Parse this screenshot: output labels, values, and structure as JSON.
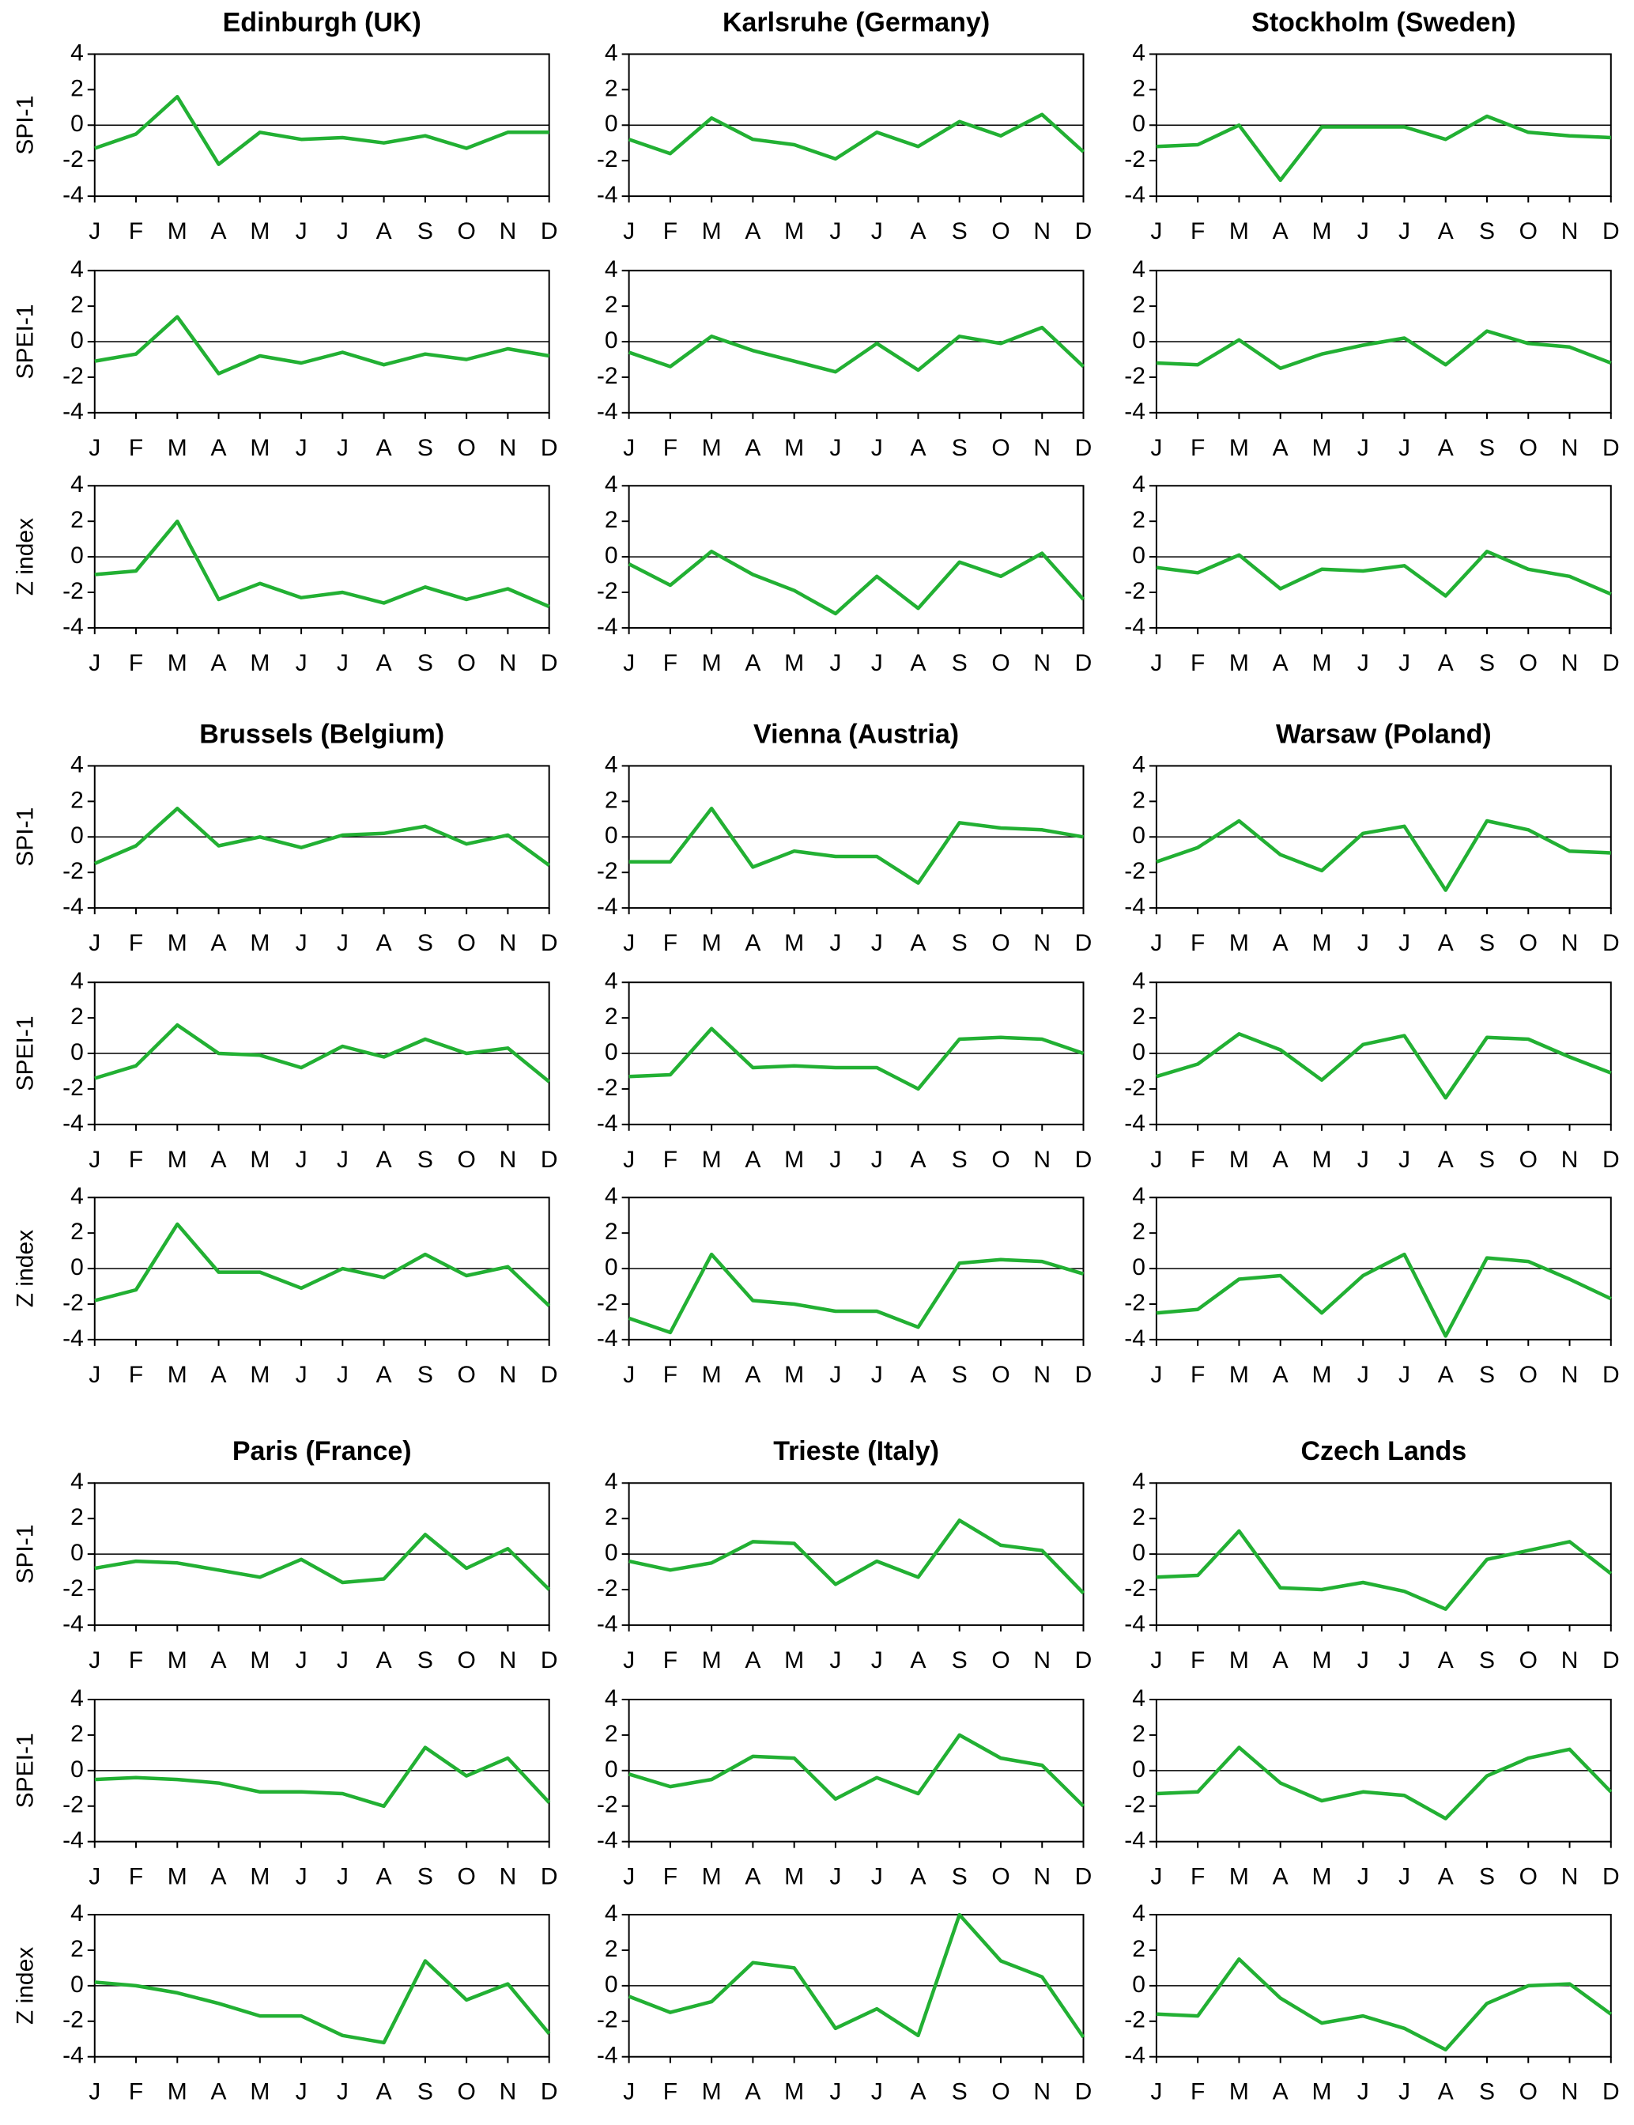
{
  "chart_data": [
    {
      "type": "line",
      "title": "Edinburgh (UK)",
      "ylabel": "SPI-1",
      "categories": [
        "J",
        "F",
        "M",
        "A",
        "M",
        "J",
        "J",
        "A",
        "S",
        "O",
        "N",
        "D"
      ],
      "series": [
        {
          "color": "#22b033",
          "values": [
            -1.3,
            -0.5,
            1.6,
            -2.2,
            -0.4,
            -0.8,
            -0.7,
            -1.0,
            -0.6,
            -1.3,
            -0.4,
            -0.4
          ]
        }
      ],
      "ylim": [
        -4,
        4
      ],
      "yticks": [
        -4,
        -2,
        0,
        2,
        4
      ],
      "zero_line": true
    },
    {
      "type": "line",
      "title": "Karlsruhe (Germany)",
      "categories": [
        "J",
        "F",
        "M",
        "A",
        "M",
        "J",
        "J",
        "A",
        "S",
        "O",
        "N",
        "D"
      ],
      "series": [
        {
          "color": "#22b033",
          "values": [
            -0.8,
            -1.6,
            0.4,
            -0.8,
            -1.1,
            -1.9,
            -0.4,
            -1.2,
            0.2,
            -0.6,
            0.6,
            -1.5
          ]
        }
      ],
      "ylim": [
        -4,
        4
      ],
      "yticks": [
        -4,
        -2,
        0,
        2,
        4
      ],
      "zero_line": true
    },
    {
      "type": "line",
      "title": "Stockholm (Sweden)",
      "categories": [
        "J",
        "F",
        "M",
        "A",
        "M",
        "J",
        "J",
        "A",
        "S",
        "O",
        "N",
        "D"
      ],
      "series": [
        {
          "color": "#22b033",
          "values": [
            -1.2,
            -1.1,
            0.0,
            -3.1,
            -0.1,
            -0.1,
            -0.1,
            -0.8,
            0.5,
            -0.4,
            -0.6,
            -0.7
          ]
        }
      ],
      "ylim": [
        -4,
        4
      ],
      "yticks": [
        -4,
        -2,
        0,
        2,
        4
      ],
      "zero_line": true
    },
    {
      "type": "line",
      "ylabel": "SPEI-1",
      "categories": [
        "J",
        "F",
        "M",
        "A",
        "M",
        "J",
        "J",
        "A",
        "S",
        "O",
        "N",
        "D"
      ],
      "series": [
        {
          "color": "#22b033",
          "values": [
            -1.1,
            -0.7,
            1.4,
            -1.8,
            -0.8,
            -1.2,
            -0.6,
            -1.3,
            -0.7,
            -1.0,
            -0.4,
            -0.8
          ]
        }
      ],
      "ylim": [
        -4,
        4
      ],
      "yticks": [
        -4,
        -2,
        0,
        2,
        4
      ],
      "zero_line": true
    },
    {
      "type": "line",
      "categories": [
        "J",
        "F",
        "M",
        "A",
        "M",
        "J",
        "J",
        "A",
        "S",
        "O",
        "N",
        "D"
      ],
      "series": [
        {
          "color": "#22b033",
          "values": [
            -0.6,
            -1.4,
            0.3,
            -0.5,
            -1.1,
            -1.7,
            -0.1,
            -1.6,
            0.3,
            -0.1,
            0.8,
            -1.4
          ]
        }
      ],
      "ylim": [
        -4,
        4
      ],
      "yticks": [
        -4,
        -2,
        0,
        2,
        4
      ],
      "zero_line": true
    },
    {
      "type": "line",
      "categories": [
        "J",
        "F",
        "M",
        "A",
        "M",
        "J",
        "J",
        "A",
        "S",
        "O",
        "N",
        "D"
      ],
      "series": [
        {
          "color": "#22b033",
          "values": [
            -1.2,
            -1.3,
            0.1,
            -1.5,
            -0.7,
            -0.2,
            0.2,
            -1.3,
            0.6,
            -0.1,
            -0.3,
            -1.2
          ]
        }
      ],
      "ylim": [
        -4,
        4
      ],
      "yticks": [
        -4,
        -2,
        0,
        2,
        4
      ],
      "zero_line": true
    },
    {
      "type": "line",
      "ylabel": "Z index",
      "categories": [
        "J",
        "F",
        "M",
        "A",
        "M",
        "J",
        "J",
        "A",
        "S",
        "O",
        "N",
        "D"
      ],
      "series": [
        {
          "color": "#22b033",
          "values": [
            -1.0,
            -0.8,
            2.0,
            -2.4,
            -1.5,
            -2.3,
            -2.0,
            -2.6,
            -1.7,
            -2.4,
            -1.8,
            -2.8
          ]
        }
      ],
      "ylim": [
        -4,
        4
      ],
      "yticks": [
        -4,
        -2,
        0,
        2,
        4
      ],
      "zero_line": true
    },
    {
      "type": "line",
      "categories": [
        "J",
        "F",
        "M",
        "A",
        "M",
        "J",
        "J",
        "A",
        "S",
        "O",
        "N",
        "D"
      ],
      "series": [
        {
          "color": "#22b033",
          "values": [
            -0.4,
            -1.6,
            0.3,
            -1.0,
            -1.9,
            -3.2,
            -1.1,
            -2.9,
            -0.3,
            -1.1,
            0.2,
            -2.4
          ]
        }
      ],
      "ylim": [
        -4,
        4
      ],
      "yticks": [
        -4,
        -2,
        0,
        2,
        4
      ],
      "zero_line": true
    },
    {
      "type": "line",
      "categories": [
        "J",
        "F",
        "M",
        "A",
        "M",
        "J",
        "J",
        "A",
        "S",
        "O",
        "N",
        "D"
      ],
      "series": [
        {
          "color": "#22b033",
          "values": [
            -0.6,
            -0.9,
            0.1,
            -1.8,
            -0.7,
            -0.8,
            -0.5,
            -2.2,
            0.3,
            -0.7,
            -1.1,
            -2.1
          ]
        }
      ],
      "ylim": [
        -4,
        4
      ],
      "yticks": [
        -4,
        -2,
        0,
        2,
        4
      ],
      "zero_line": true
    },
    {
      "type": "line",
      "title": "Brussels (Belgium)",
      "ylabel": "SPI-1",
      "categories": [
        "J",
        "F",
        "M",
        "A",
        "M",
        "J",
        "J",
        "A",
        "S",
        "O",
        "N",
        "D"
      ],
      "series": [
        {
          "color": "#22b033",
          "values": [
            -1.5,
            -0.5,
            1.6,
            -0.5,
            0.0,
            -0.6,
            0.1,
            0.2,
            0.6,
            -0.4,
            0.1,
            -1.6
          ]
        }
      ],
      "ylim": [
        -4,
        4
      ],
      "yticks": [
        -4,
        -2,
        0,
        2,
        4
      ],
      "zero_line": true
    },
    {
      "type": "line",
      "title": "Vienna (Austria)",
      "categories": [
        "J",
        "F",
        "M",
        "A",
        "M",
        "J",
        "J",
        "A",
        "S",
        "O",
        "N",
        "D"
      ],
      "series": [
        {
          "color": "#22b033",
          "values": [
            -1.4,
            -1.4,
            1.6,
            -1.7,
            -0.8,
            -1.1,
            -1.1,
            -2.6,
            0.8,
            0.5,
            0.4,
            0.0
          ]
        }
      ],
      "ylim": [
        -4,
        4
      ],
      "yticks": [
        -4,
        -2,
        0,
        2,
        4
      ],
      "zero_line": true
    },
    {
      "type": "line",
      "title": "Warsaw (Poland)",
      "categories": [
        "J",
        "F",
        "M",
        "A",
        "M",
        "J",
        "J",
        "A",
        "S",
        "O",
        "N",
        "D"
      ],
      "series": [
        {
          "color": "#22b033",
          "values": [
            -1.4,
            -0.6,
            0.9,
            -1.0,
            -1.9,
            0.2,
            0.6,
            -3.0,
            0.9,
            0.4,
            -0.8,
            -0.9
          ]
        }
      ],
      "ylim": [
        -4,
        4
      ],
      "yticks": [
        -4,
        -2,
        0,
        2,
        4
      ],
      "zero_line": true
    },
    {
      "type": "line",
      "ylabel": "SPEI-1",
      "categories": [
        "J",
        "F",
        "M",
        "A",
        "M",
        "J",
        "J",
        "A",
        "S",
        "O",
        "N",
        "D"
      ],
      "series": [
        {
          "color": "#22b033",
          "values": [
            -1.4,
            -0.7,
            1.6,
            0.0,
            -0.1,
            -0.8,
            0.4,
            -0.2,
            0.8,
            0.0,
            0.3,
            -1.6
          ]
        }
      ],
      "ylim": [
        -4,
        4
      ],
      "yticks": [
        -4,
        -2,
        0,
        2,
        4
      ],
      "zero_line": true
    },
    {
      "type": "line",
      "categories": [
        "J",
        "F",
        "M",
        "A",
        "M",
        "J",
        "J",
        "A",
        "S",
        "O",
        "N",
        "D"
      ],
      "series": [
        {
          "color": "#22b033",
          "values": [
            -1.3,
            -1.2,
            1.4,
            -0.8,
            -0.7,
            -0.8,
            -0.8,
            -2.0,
            0.8,
            0.9,
            0.8,
            0.0
          ]
        }
      ],
      "ylim": [
        -4,
        4
      ],
      "yticks": [
        -4,
        -2,
        0,
        2,
        4
      ],
      "zero_line": true
    },
    {
      "type": "line",
      "categories": [
        "J",
        "F",
        "M",
        "A",
        "M",
        "J",
        "J",
        "A",
        "S",
        "O",
        "N",
        "D"
      ],
      "series": [
        {
          "color": "#22b033",
          "values": [
            -1.3,
            -0.6,
            1.1,
            0.2,
            -1.5,
            0.5,
            1.0,
            -2.5,
            0.9,
            0.8,
            -0.2,
            -1.1
          ]
        }
      ],
      "ylim": [
        -4,
        4
      ],
      "yticks": [
        -4,
        -2,
        0,
        2,
        4
      ],
      "zero_line": true
    },
    {
      "type": "line",
      "ylabel": "Z index",
      "categories": [
        "J",
        "F",
        "M",
        "A",
        "M",
        "J",
        "J",
        "A",
        "S",
        "O",
        "N",
        "D"
      ],
      "series": [
        {
          "color": "#22b033",
          "values": [
            -1.8,
            -1.2,
            2.5,
            -0.2,
            -0.2,
            -1.1,
            0.0,
            -0.5,
            0.8,
            -0.4,
            0.1,
            -2.1
          ]
        }
      ],
      "ylim": [
        -4,
        4
      ],
      "yticks": [
        -4,
        -2,
        0,
        2,
        4
      ],
      "zero_line": true
    },
    {
      "type": "line",
      "categories": [
        "J",
        "F",
        "M",
        "A",
        "M",
        "J",
        "J",
        "A",
        "S",
        "O",
        "N",
        "D"
      ],
      "series": [
        {
          "color": "#22b033",
          "values": [
            -2.8,
            -3.6,
            0.8,
            -1.8,
            -2.0,
            -2.4,
            -2.4,
            -3.3,
            0.3,
            0.5,
            0.4,
            -0.3
          ]
        }
      ],
      "ylim": [
        -4,
        4
      ],
      "yticks": [
        -4,
        -2,
        0,
        2,
        4
      ],
      "zero_line": true
    },
    {
      "type": "line",
      "categories": [
        "J",
        "F",
        "M",
        "A",
        "M",
        "J",
        "J",
        "A",
        "S",
        "O",
        "N",
        "D"
      ],
      "series": [
        {
          "color": "#22b033",
          "values": [
            -2.5,
            -2.3,
            -0.6,
            -0.4,
            -2.5,
            -0.4,
            0.8,
            -3.8,
            0.6,
            0.4,
            -0.6,
            -1.7
          ]
        }
      ],
      "ylim": [
        -4,
        4
      ],
      "yticks": [
        -4,
        -2,
        0,
        2,
        4
      ],
      "zero_line": true
    },
    {
      "type": "line",
      "title": "Paris (France)",
      "ylabel": "SPI-1",
      "categories": [
        "J",
        "F",
        "M",
        "A",
        "M",
        "J",
        "J",
        "A",
        "S",
        "O",
        "N",
        "D"
      ],
      "series": [
        {
          "color": "#22b033",
          "values": [
            -0.8,
            -0.4,
            -0.5,
            -0.9,
            -1.3,
            -0.3,
            -1.6,
            -1.4,
            1.1,
            -0.8,
            0.3,
            -2.0
          ]
        }
      ],
      "ylim": [
        -4,
        4
      ],
      "yticks": [
        -4,
        -2,
        0,
        2,
        4
      ],
      "zero_line": true
    },
    {
      "type": "line",
      "title": "Trieste (Italy)",
      "categories": [
        "J",
        "F",
        "M",
        "A",
        "M",
        "J",
        "J",
        "A",
        "S",
        "O",
        "N",
        "D"
      ],
      "series": [
        {
          "color": "#22b033",
          "values": [
            -0.4,
            -0.9,
            -0.5,
            0.7,
            0.6,
            -1.7,
            -0.4,
            -1.3,
            1.9,
            0.5,
            0.2,
            -2.2
          ]
        }
      ],
      "ylim": [
        -4,
        4
      ],
      "yticks": [
        -4,
        -2,
        0,
        2,
        4
      ],
      "zero_line": true
    },
    {
      "type": "line",
      "title": "Czech Lands",
      "categories": [
        "J",
        "F",
        "M",
        "A",
        "M",
        "J",
        "J",
        "A",
        "S",
        "O",
        "N",
        "D"
      ],
      "series": [
        {
          "color": "#22b033",
          "values": [
            -1.3,
            -1.2,
            1.3,
            -1.9,
            -2.0,
            -1.6,
            -2.1,
            -3.1,
            -0.3,
            0.2,
            0.7,
            -1.1
          ]
        }
      ],
      "ylim": [
        -4,
        4
      ],
      "yticks": [
        -4,
        -2,
        0,
        2,
        4
      ],
      "zero_line": true
    },
    {
      "type": "line",
      "ylabel": "SPEI-1",
      "categories": [
        "J",
        "F",
        "M",
        "A",
        "M",
        "J",
        "J",
        "A",
        "S",
        "O",
        "N",
        "D"
      ],
      "series": [
        {
          "color": "#22b033",
          "values": [
            -0.5,
            -0.4,
            -0.5,
            -0.7,
            -1.2,
            -1.2,
            -1.3,
            -2.0,
            1.3,
            -0.3,
            0.7,
            -1.8
          ]
        }
      ],
      "ylim": [
        -4,
        4
      ],
      "yticks": [
        -4,
        -2,
        0,
        2,
        4
      ],
      "zero_line": true
    },
    {
      "type": "line",
      "categories": [
        "J",
        "F",
        "M",
        "A",
        "M",
        "J",
        "J",
        "A",
        "S",
        "O",
        "N",
        "D"
      ],
      "series": [
        {
          "color": "#22b033",
          "values": [
            -0.2,
            -0.9,
            -0.5,
            0.8,
            0.7,
            -1.6,
            -0.4,
            -1.3,
            2.0,
            0.7,
            0.3,
            -2.0
          ]
        }
      ],
      "ylim": [
        -4,
        4
      ],
      "yticks": [
        -4,
        -2,
        0,
        2,
        4
      ],
      "zero_line": true
    },
    {
      "type": "line",
      "categories": [
        "J",
        "F",
        "M",
        "A",
        "M",
        "J",
        "J",
        "A",
        "S",
        "O",
        "N",
        "D"
      ],
      "series": [
        {
          "color": "#22b033",
          "values": [
            -1.3,
            -1.2,
            1.3,
            -0.7,
            -1.7,
            -1.2,
            -1.4,
            -2.7,
            -0.3,
            0.7,
            1.2,
            -1.2
          ]
        }
      ],
      "ylim": [
        -4,
        4
      ],
      "yticks": [
        -4,
        -2,
        0,
        2,
        4
      ],
      "zero_line": true
    },
    {
      "type": "line",
      "ylabel": "Z index",
      "categories": [
        "J",
        "F",
        "M",
        "A",
        "M",
        "J",
        "J",
        "A",
        "S",
        "O",
        "N",
        "D"
      ],
      "series": [
        {
          "color": "#22b033",
          "values": [
            0.2,
            0.0,
            -0.4,
            -1.0,
            -1.7,
            -1.7,
            -2.8,
            -3.2,
            1.4,
            -0.8,
            0.1,
            -2.7
          ]
        }
      ],
      "ylim": [
        -4,
        4
      ],
      "yticks": [
        -4,
        -2,
        0,
        2,
        4
      ],
      "zero_line": true
    },
    {
      "type": "line",
      "categories": [
        "J",
        "F",
        "M",
        "A",
        "M",
        "J",
        "J",
        "A",
        "S",
        "O",
        "N",
        "D"
      ],
      "series": [
        {
          "color": "#22b033",
          "values": [
            -0.6,
            -1.5,
            -0.9,
            1.3,
            1.0,
            -2.4,
            -1.3,
            -2.8,
            4.0,
            1.4,
            0.5,
            -2.9
          ]
        }
      ],
      "ylim": [
        -4,
        4
      ],
      "yticks": [
        -4,
        -2,
        0,
        2,
        4
      ],
      "zero_line": true
    },
    {
      "type": "line",
      "categories": [
        "J",
        "F",
        "M",
        "A",
        "M",
        "J",
        "J",
        "A",
        "S",
        "O",
        "N",
        "D"
      ],
      "series": [
        {
          "color": "#22b033",
          "values": [
            -1.6,
            -1.7,
            1.5,
            -0.7,
            -2.1,
            -1.7,
            -2.4,
            -3.6,
            -1.0,
            0.0,
            0.1,
            -1.6
          ]
        }
      ],
      "ylim": [
        -4,
        4
      ],
      "yticks": [
        -4,
        -2,
        0,
        2,
        4
      ],
      "zero_line": true
    }
  ]
}
